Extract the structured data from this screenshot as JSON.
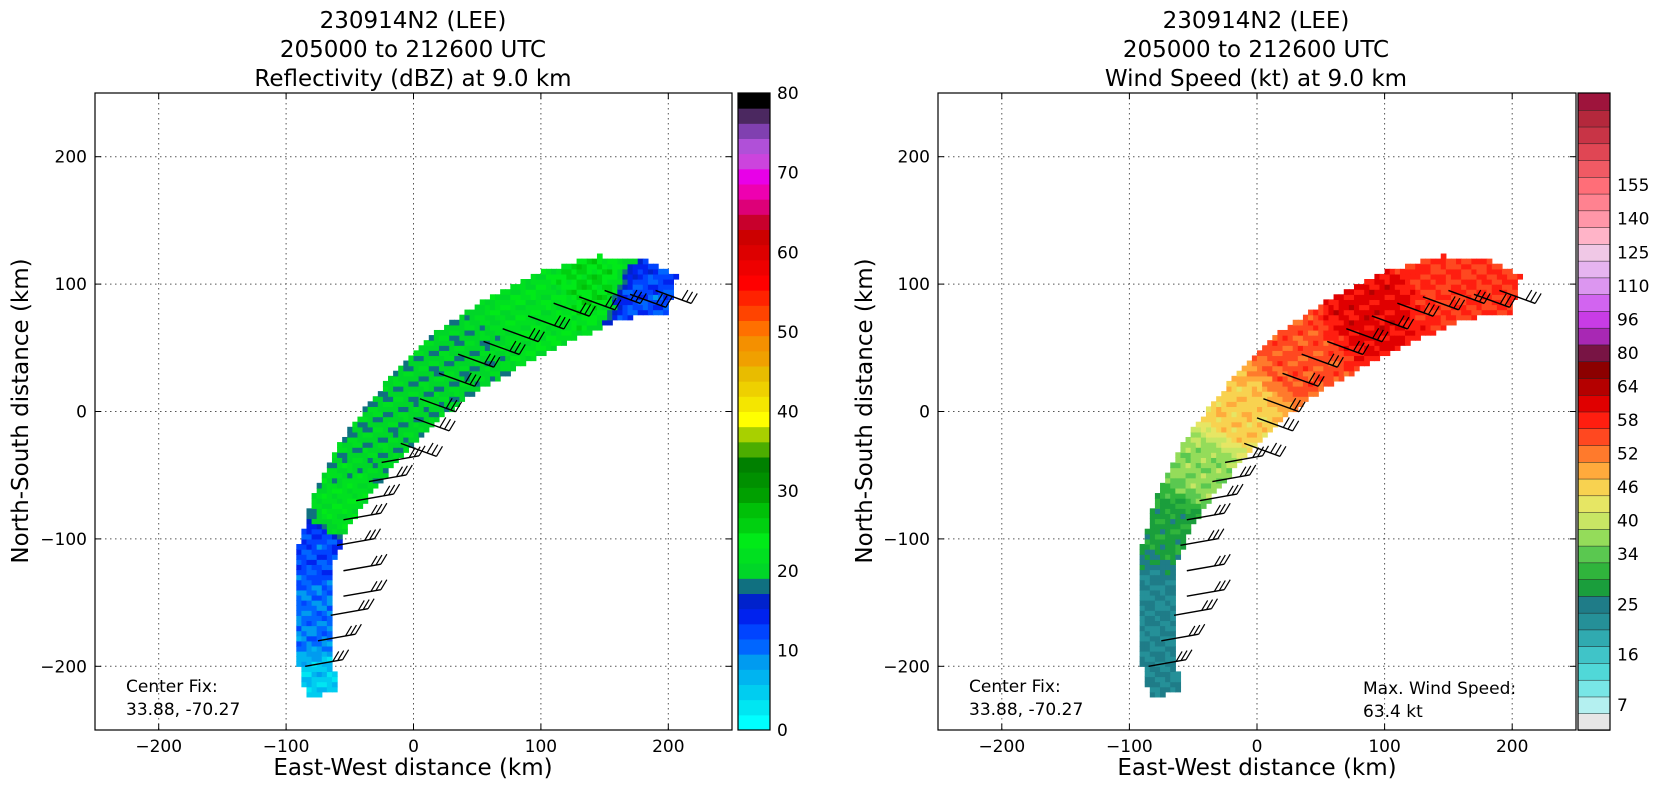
{
  "chart_data": [
    {
      "type": "heatmap",
      "title_lines": [
        "230914N2 (LEE)",
        "205000 to 212600 UTC",
        "Reflectivity (dBZ) at 9.0 km"
      ],
      "xlabel": "East-West distance (km)",
      "ylabel": "North-South distance (km)",
      "xlim": [
        -250,
        250
      ],
      "ylim": [
        -250,
        250
      ],
      "xticks": [
        -200,
        -100,
        0,
        100,
        200
      ],
      "yticks": [
        -200,
        -100,
        0,
        100,
        200
      ],
      "xtick_labels": [
        "−200",
        "−100",
        "0",
        "100",
        "200"
      ],
      "ytick_labels": [
        "−200",
        "−100",
        "0",
        "100",
        "200"
      ],
      "grid": true,
      "colorbar": {
        "min": 0,
        "max": 80,
        "ticks": [
          0,
          10,
          20,
          30,
          40,
          50,
          60,
          70,
          80
        ],
        "tick_labels": [
          "0",
          "10",
          "20",
          "30",
          "40",
          "50",
          "60",
          "70",
          "80"
        ],
        "colors": [
          "#00ffff",
          "#00e6f2",
          "#00cdf0",
          "#00b4f0",
          "#009bf0",
          "#0066ff",
          "#0044ff",
          "#0022ee",
          "#0022cc",
          "#107080",
          "#00d628",
          "#00e020",
          "#00ea18",
          "#00d010",
          "#00c008",
          "#00a000",
          "#009000",
          "#008000",
          "#4cad00",
          "#a8d000",
          "#ffff00",
          "#f4e600",
          "#eed000",
          "#e8bc00",
          "#f0a000",
          "#f49000",
          "#ff7000",
          "#ff4400",
          "#ff2200",
          "#ff0000",
          "#ee0000",
          "#dd0000",
          "#cc0000",
          "#c8002c",
          "#dd0078",
          "#ee00b0",
          "#e800e8",
          "#cc44dd",
          "#b050d8",
          "#8040b0",
          "#4b2860",
          "#000000"
        ]
      },
      "field_description_points": [
        {
          "x": -70,
          "y": -220,
          "value": 5
        },
        {
          "x": -75,
          "y": -160,
          "value": 10
        },
        {
          "x": -75,
          "y": -110,
          "value": 12
        },
        {
          "x": -55,
          "y": -80,
          "value": 22
        },
        {
          "x": -20,
          "y": -20,
          "value": 20
        },
        {
          "x": 30,
          "y": 40,
          "value": 20
        },
        {
          "x": 100,
          "y": 85,
          "value": 22
        },
        {
          "x": 140,
          "y": 100,
          "value": 25
        },
        {
          "x": 180,
          "y": 85,
          "value": 12
        }
      ],
      "annotations": [
        {
          "id": "center_fix_label",
          "text": "Center Fix:"
        },
        {
          "id": "center_fix_value",
          "text": "33.88, -70.27"
        }
      ]
    },
    {
      "type": "heatmap",
      "title_lines": [
        "230914N2 (LEE)",
        "205000 to 212600 UTC",
        "Wind Speed (kt) at 9.0 km"
      ],
      "xlabel": "East-West distance (km)",
      "ylabel": "North-South distance (km)",
      "xlim": [
        -250,
        250
      ],
      "ylim": [
        -250,
        250
      ],
      "xticks": [
        -200,
        -100,
        0,
        100,
        200
      ],
      "yticks": [
        -200,
        -100,
        0,
        100,
        200
      ],
      "xtick_labels": [
        "−200",
        "−100",
        "0",
        "100",
        "200"
      ],
      "ytick_labels": [
        "−200",
        "−100",
        "0",
        "100",
        "200"
      ],
      "grid": true,
      "colorbar": {
        "ticks": [
          "7",
          "16",
          "25",
          "34",
          "40",
          "46",
          "52",
          "58",
          "64",
          "80",
          "96",
          "110",
          "125",
          "140",
          "155"
        ],
        "tick_positions": [
          7,
          16,
          25,
          34,
          40,
          46,
          52,
          58,
          64,
          80,
          96,
          110,
          125,
          140,
          155
        ],
        "colors": [
          "#e6e6e6",
          "#b4f0f0",
          "#78e6e6",
          "#50d8d8",
          "#40c4c8",
          "#30aab0",
          "#259098",
          "#1f7c88",
          "#1a9e3c",
          "#30b43c",
          "#5ac850",
          "#94dc5a",
          "#c8e664",
          "#e6e664",
          "#f8d250",
          "#ffaa3c",
          "#ff7a2c",
          "#ff4820",
          "#ff1e10",
          "#e00000",
          "#b40000",
          "#8c0000",
          "#781444",
          "#a828b4",
          "#c83ce6",
          "#d264f0",
          "#dc96f0",
          "#e6b4f0",
          "#f0c8e6",
          "#ffb4c8",
          "#ff96a8",
          "#ff8290",
          "#ff6e78",
          "#f05a64",
          "#e04654",
          "#c83446",
          "#b4283c",
          "#9e143c"
        ],
        "edges": [
          0,
          7,
          10,
          13,
          16,
          19,
          22,
          25,
          28,
          31,
          34,
          37,
          40,
          43,
          46,
          49,
          52,
          55,
          58,
          61,
          64,
          72,
          80,
          88,
          96,
          103,
          110,
          117,
          125,
          132,
          140,
          147,
          155,
          162
        ]
      },
      "field_description_points": [
        {
          "x": -70,
          "y": -220,
          "value": 25
        },
        {
          "x": -75,
          "y": -150,
          "value": 25
        },
        {
          "x": -60,
          "y": -90,
          "value": 30
        },
        {
          "x": -40,
          "y": -50,
          "value": 38
        },
        {
          "x": -10,
          "y": 0,
          "value": 48
        },
        {
          "x": 30,
          "y": 40,
          "value": 56
        },
        {
          "x": 90,
          "y": 80,
          "value": 62
        },
        {
          "x": 150,
          "y": 95,
          "value": 58
        }
      ],
      "annotations": [
        {
          "id": "center_fix_label",
          "text": "Center Fix:"
        },
        {
          "id": "center_fix_value",
          "text": "33.88, -70.27"
        },
        {
          "id": "max_wind_label",
          "text": "Max. Wind Speed:"
        },
        {
          "id": "max_wind_value",
          "text": "63.4 kt"
        }
      ]
    }
  ]
}
